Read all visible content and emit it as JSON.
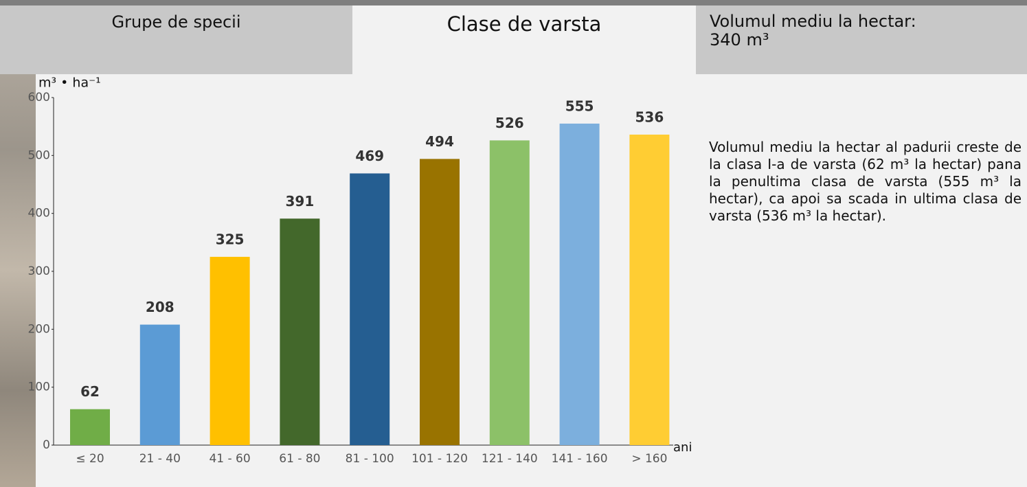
{
  "tabs": [
    "Grupe de specii",
    "Clase de varsta",
    "Volumul mediu la hectar:",
    "340 m³"
  ],
  "description": "Volumul mediu la hectar al padurii creste de la clasa I-a de varsta (62 m³ la hectar) pana la penultima clasa de varsta (555 m³ la hectar), ca apoi sa scada in ultima clasa de varsta (536 m³ la hectar).",
  "chart_data": {
    "type": "bar",
    "y_label": "m³ • ha⁻¹",
    "x_label": "ani",
    "categories": [
      "≤ 20",
      "21 - 40",
      "41 - 60",
      "61 - 80",
      "81 - 100",
      "101 - 120",
      "121 - 140",
      "141 - 160",
      "> 160"
    ],
    "values": [
      62,
      208,
      325,
      391,
      469,
      494,
      526,
      555,
      536
    ],
    "colors": [
      "#70ad47",
      "#5b9bd5",
      "#ffc000",
      "#43682b",
      "#255e91",
      "#997300",
      "#8cc168",
      "#7cafdd",
      "#ffcd33"
    ],
    "ylim": [
      0,
      600
    ],
    "yticks": [
      0,
      100,
      200,
      300,
      400,
      500,
      600
    ],
    "grid": false
  }
}
